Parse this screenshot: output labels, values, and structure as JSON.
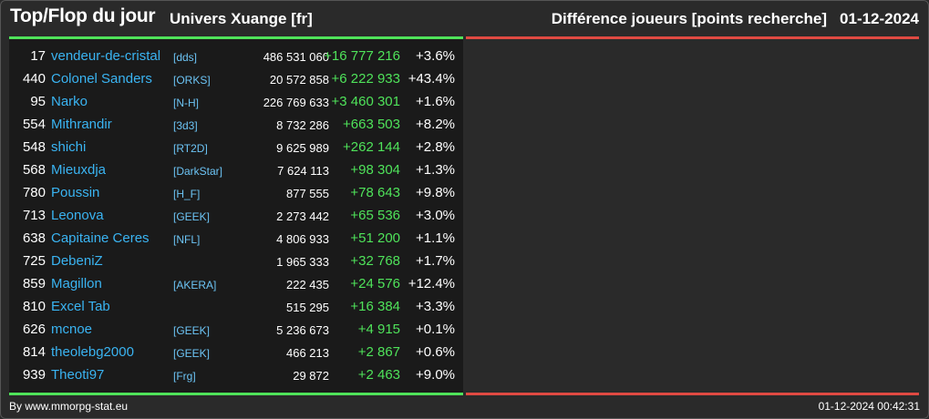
{
  "header": {
    "title": "Top/Flop du jour",
    "universe": "Univers Xuange [fr]",
    "metric": "Différence joueurs [points recherche]",
    "date": "01-12-2024"
  },
  "colors": {
    "accent_green": "#4fe35a",
    "accent_red": "#e04a42",
    "name_blue": "#3ab4f2"
  },
  "top": [
    {
      "rank": "17",
      "name": "vendeur-de-cristal",
      "tag": "[dds]",
      "points": "486 531 060",
      "diff": "+16 777 216",
      "pct": "+3.6%"
    },
    {
      "rank": "440",
      "name": "Colonel Sanders",
      "tag": "[ORKS]",
      "points": "20 572 858",
      "diff": "+6 222 933",
      "pct": "+43.4%"
    },
    {
      "rank": "95",
      "name": "Narko",
      "tag": "[N-H]",
      "points": "226 769 633",
      "diff": "+3 460 301",
      "pct": "+1.6%"
    },
    {
      "rank": "554",
      "name": "Mithrandir",
      "tag": "[3d3]",
      "points": "8 732 286",
      "diff": "+663 503",
      "pct": "+8.2%"
    },
    {
      "rank": "548",
      "name": "shichi",
      "tag": "[RT2D]",
      "points": "9 625 989",
      "diff": "+262 144",
      "pct": "+2.8%"
    },
    {
      "rank": "568",
      "name": "Mieuxdja",
      "tag": "[DarkStar]",
      "points": "7 624 113",
      "diff": "+98 304",
      "pct": "+1.3%"
    },
    {
      "rank": "780",
      "name": "Poussin",
      "tag": "[H_F]",
      "points": "877 555",
      "diff": "+78 643",
      "pct": "+9.8%"
    },
    {
      "rank": "713",
      "name": "Leonova",
      "tag": "[GEEK]",
      "points": "2 273 442",
      "diff": "+65 536",
      "pct": "+3.0%"
    },
    {
      "rank": "638",
      "name": "Capitaine Ceres",
      "tag": "[NFL]",
      "points": "4 806 933",
      "diff": "+51 200",
      "pct": "+1.1%"
    },
    {
      "rank": "725",
      "name": "DebeniZ",
      "tag": "",
      "points": "1 965 333",
      "diff": "+32 768",
      "pct": "+1.7%"
    },
    {
      "rank": "859",
      "name": "Magillon",
      "tag": "[AKERA]",
      "points": "222 435",
      "diff": "+24 576",
      "pct": "+12.4%"
    },
    {
      "rank": "810",
      "name": "Excel Tab",
      "tag": "",
      "points": "515 295",
      "diff": "+16 384",
      "pct": "+3.3%"
    },
    {
      "rank": "626",
      "name": "mcnoe",
      "tag": "[GEEK]",
      "points": "5 236 673",
      "diff": "+4 915",
      "pct": "+0.1%"
    },
    {
      "rank": "814",
      "name": "theolebg2000",
      "tag": "[GEEK]",
      "points": "466 213",
      "diff": "+2 867",
      "pct": "+0.6%"
    },
    {
      "rank": "939",
      "name": "Theoti97",
      "tag": "[Frg]",
      "points": "29 872",
      "diff": "+2 463",
      "pct": "+9.0%"
    }
  ],
  "footer": {
    "credit": "By www.mmorpg-stat.eu",
    "timestamp": "01-12-2024 00:42:31"
  }
}
